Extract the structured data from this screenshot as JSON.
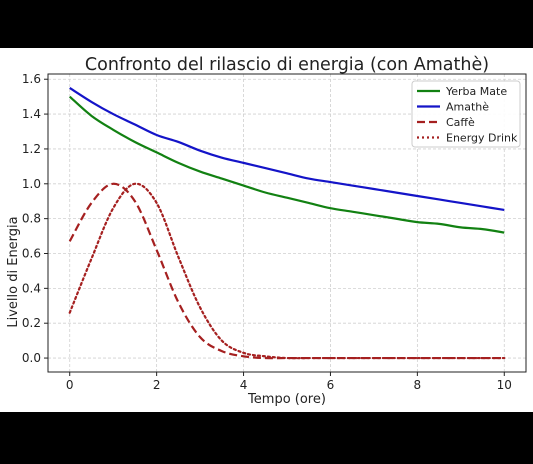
{
  "chart_data": {
    "type": "line",
    "title": "Confronto del rilascio di energia (con Amathè)",
    "xlabel": "Tempo (ore)",
    "ylabel": "Livello di Energia",
    "xlim": [
      -0.5,
      10.5
    ],
    "ylim": [
      -0.08,
      1.63
    ],
    "xticks": [
      0,
      2,
      4,
      6,
      8,
      10
    ],
    "yticks": [
      0.0,
      0.2,
      0.4,
      0.6,
      0.8,
      1.0,
      1.2,
      1.4,
      1.6
    ],
    "grid": true,
    "legend_position": "top-right",
    "x": [
      0,
      0.5,
      1,
      1.5,
      2,
      2.5,
      3,
      3.5,
      4,
      4.5,
      5,
      5.5,
      6,
      6.5,
      7,
      7.5,
      8,
      8.5,
      9,
      9.5,
      10
    ],
    "series": [
      {
        "name": "Yerba Mate",
        "color": "#128112",
        "style": "solid",
        "values": [
          1.5,
          1.39,
          1.31,
          1.24,
          1.18,
          1.12,
          1.07,
          1.03,
          0.99,
          0.95,
          0.92,
          0.89,
          0.86,
          0.84,
          0.82,
          0.8,
          0.78,
          0.77,
          0.75,
          0.74,
          0.72
        ]
      },
      {
        "name": "Amathè",
        "color": "#1414c8",
        "style": "solid",
        "values": [
          1.55,
          1.47,
          1.4,
          1.34,
          1.28,
          1.24,
          1.19,
          1.15,
          1.12,
          1.09,
          1.06,
          1.03,
          1.01,
          0.99,
          0.97,
          0.95,
          0.93,
          0.91,
          0.89,
          0.87,
          0.85
        ]
      },
      {
        "name": "Caffè",
        "color": "#a52020",
        "style": "dashed",
        "values": [
          0.67,
          0.89,
          1.0,
          0.9,
          0.62,
          0.32,
          0.12,
          0.04,
          0.01,
          0.0,
          0.0,
          0.0,
          0.0,
          0.0,
          0.0,
          0.0,
          0.0,
          0.0,
          0.0,
          0.0,
          0.0
        ]
      },
      {
        "name": "Energy Drink",
        "color": "#a52020",
        "style": "dotted",
        "values": [
          0.26,
          0.57,
          0.86,
          1.0,
          0.89,
          0.58,
          0.29,
          0.1,
          0.03,
          0.01,
          0.0,
          0.0,
          0.0,
          0.0,
          0.0,
          0.0,
          0.0,
          0.0,
          0.0,
          0.0,
          0.0
        ]
      }
    ]
  }
}
